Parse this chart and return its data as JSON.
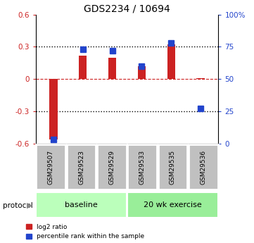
{
  "title": "GDS2234 / 10694",
  "samples": [
    "GSM29507",
    "GSM29523",
    "GSM29529",
    "GSM29533",
    "GSM29535",
    "GSM29536"
  ],
  "log2_ratio": [
    -0.565,
    0.22,
    0.195,
    0.12,
    0.325,
    0.01
  ],
  "percentile_rank": [
    3,
    73,
    72,
    60,
    78,
    27
  ],
  "ylim_left": [
    -0.6,
    0.6
  ],
  "ylim_right": [
    0,
    100
  ],
  "left_ticks": [
    -0.6,
    -0.3,
    0.0,
    0.3,
    0.6
  ],
  "right_ticks": [
    0,
    25,
    50,
    75,
    100
  ],
  "left_tick_labels": [
    "-0.6",
    "-0.3",
    "0",
    "0.3",
    "0.6"
  ],
  "right_tick_labels": [
    "0",
    "25",
    "50",
    "75",
    "100%"
  ],
  "bar_color_red": "#cc2222",
  "bar_color_blue": "#2244cc",
  "dotted_line_color": "#000000",
  "zero_line_color": "#cc2222",
  "baseline_count": 3,
  "exercise_count": 3,
  "baseline_label": "baseline",
  "exercise_label": "20 wk exercise",
  "protocol_label": "protocol",
  "legend_red": "log2 ratio",
  "legend_blue": "percentile rank within the sample",
  "bg_color": "#ffffff",
  "plot_bg_color": "#ffffff",
  "group_box_color": "#c0c0c0",
  "group_green_baseline": "#bbffbb",
  "group_green_exercise": "#99ee99",
  "red_bar_width": 0.28,
  "blue_marker_size": 6
}
